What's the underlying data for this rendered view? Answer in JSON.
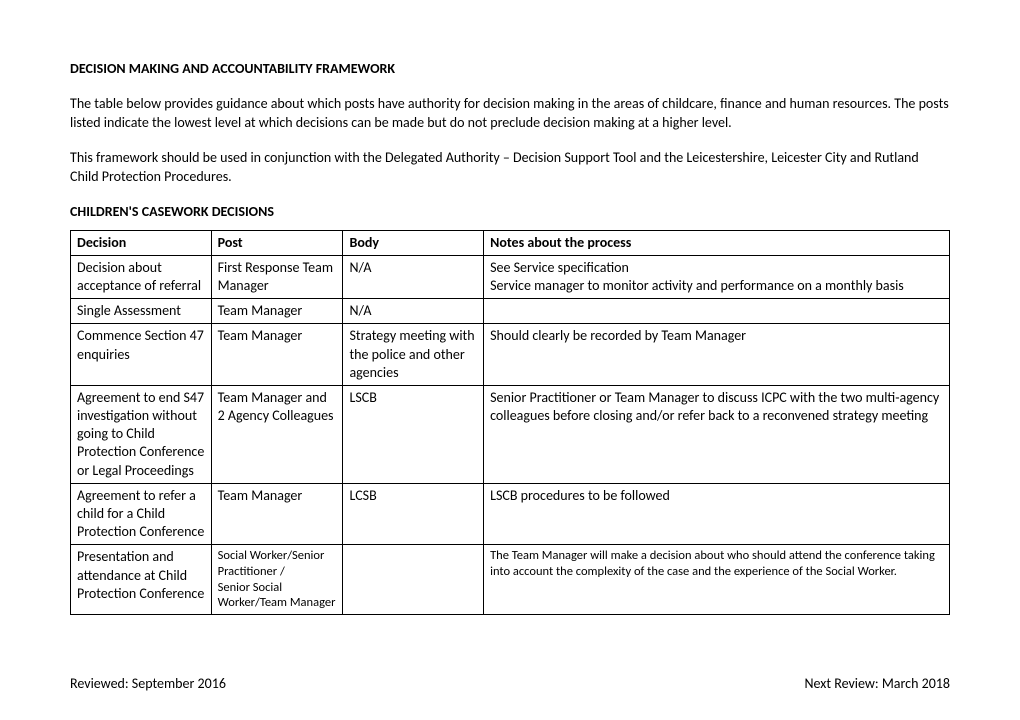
{
  "title": "DECISION MAKING AND ACCOUNTABILITY FRAMEWORK",
  "para1": "The table below provides guidance about which posts have authority for decision making in the areas of childcare, finance and human resources. The posts listed indicate the lowest level at which decisions can be made but do not preclude decision making at a higher level.",
  "para2": "This framework should be used in conjunction with the Delegated Authority – Decision Support Tool and the Leicestershire, Leicester City and Rutland Child Protection Procedures.",
  "subheading": "CHILDREN'S CASEWORK DECISIONS",
  "headers": {
    "decision": "Decision",
    "post": "Post",
    "body": "Body",
    "notes": "Notes about the process"
  },
  "rows": [
    {
      "decision": "Decision about acceptance of referral",
      "post": "First Response Team Manager",
      "body": "N/A",
      "notes": "See Service specification\nService manager to monitor activity and performance on a monthly basis"
    },
    {
      "decision": "Single Assessment",
      "post": "Team Manager",
      "body": "N/A",
      "notes": ""
    },
    {
      "decision": "Commence Section 47 enquiries",
      "post": "Team Manager",
      "body": "Strategy meeting with the police and other agencies",
      "notes": "Should clearly be recorded by Team Manager"
    },
    {
      "decision": "Agreement to end S47 investigation without going to Child Protection Conference or Legal Proceedings\n",
      "post": "Team Manager and 2 Agency Colleagues",
      "body": "LSCB",
      "notes": "Senior Practitioner or Team Manager to discuss ICPC with the two multi-agency colleagues before closing and/or refer back to a reconvened strategy meeting"
    },
    {
      "decision": "Agreement to refer a child for a Child Protection Conference",
      "post": "Team Manager",
      "body": "LCSB",
      "notes": "LSCB procedures to be followed"
    },
    {
      "decision": "Presentation and attendance at Child Protection Conference",
      "post": "Social Worker/Senior Practitioner /\nSenior Social Worker/Team Manager",
      "body": "",
      "notes": "The Team Manager will make a decision about who should attend the conference taking into account the complexity of the case and the experience of the Social Worker.",
      "small": true
    }
  ],
  "footer": {
    "left": "Reviewed: September 2016",
    "right": "Next Review: March  2018"
  }
}
